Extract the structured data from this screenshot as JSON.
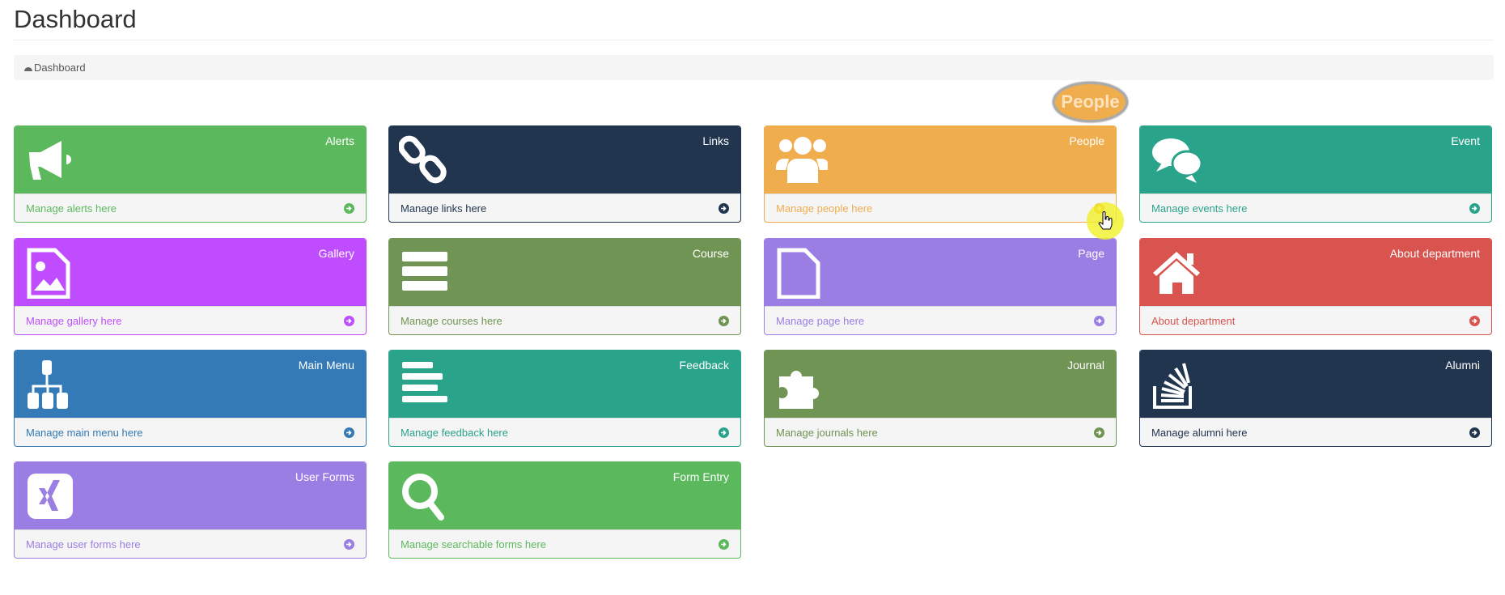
{
  "header": {
    "title": "Dashboard"
  },
  "breadcrumb": {
    "icon": "dashboard-icon",
    "label": "Dashboard"
  },
  "cards": [
    {
      "title": "Alerts",
      "link": "Manage alerts here",
      "icon": "bullhorn-icon",
      "color": "#5cb85c"
    },
    {
      "title": "Links",
      "link": "Manage links here",
      "icon": "chain-icon",
      "color": "#22354f"
    },
    {
      "title": "People",
      "link": "Manage people here",
      "icon": "users-icon",
      "color": "#f0ad4e"
    },
    {
      "title": "Event",
      "link": "Manage events here",
      "icon": "comments-icon",
      "color": "#2aa38b"
    },
    {
      "title": "Gallery",
      "link": "Manage gallery here",
      "icon": "file-image-icon",
      "color": "#bf4dff"
    },
    {
      "title": "Course",
      "link": "Manage courses here",
      "icon": "server-icon",
      "color": "#709454"
    },
    {
      "title": "Page",
      "link": "Manage page here",
      "icon": "file-icon",
      "color": "#9b7ee4"
    },
    {
      "title": "About department",
      "link": "About department",
      "icon": "home-icon",
      "color": "#d9534f"
    },
    {
      "title": "Main Menu",
      "link": "Manage main menu here",
      "icon": "sitemap-icon",
      "color": "#337ab7"
    },
    {
      "title": "Feedback",
      "link": "Manage feedback here",
      "icon": "align-left-icon",
      "color": "#2aa38b"
    },
    {
      "title": "Journal",
      "link": "Manage journals here",
      "icon": "puzzle-piece-icon",
      "color": "#709454"
    },
    {
      "title": "Alumni",
      "link": "Manage alumni here",
      "icon": "stack-overflow-icon",
      "color": "#22354f"
    },
    {
      "title": "User Forms",
      "link": "Manage user forms here",
      "icon": "xing-square-icon",
      "color": "#9b7ee4"
    },
    {
      "title": "Form Entry",
      "link": "Manage searchable forms here",
      "icon": "search-icon",
      "color": "#5cb85c"
    }
  ],
  "hover_tooltip": "People"
}
